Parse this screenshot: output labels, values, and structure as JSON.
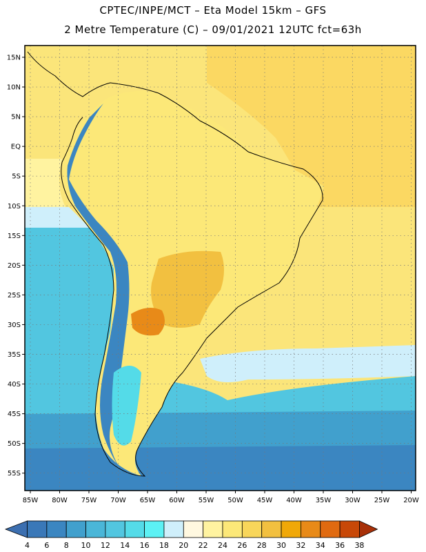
{
  "header": {
    "line1": "CPTEC/INPE/MCT –  Eta Model 15km – GFS",
    "line2": "2 Metre Temperature (C) – 09/01/2021 12UTC fct=63h"
  },
  "axes": {
    "lat_labels": [
      "15N",
      "10N",
      "5N",
      "EQ",
      "5S",
      "10S",
      "15S",
      "20S",
      "25S",
      "30S",
      "35S",
      "40S",
      "45S",
      "50S",
      "55S"
    ],
    "lon_labels": [
      "85W",
      "80W",
      "75W",
      "70W",
      "65W",
      "60W",
      "55W",
      "50W",
      "45W",
      "40W",
      "35W",
      "30W",
      "25W",
      "20W"
    ]
  },
  "colorbar": {
    "labels": [
      "4",
      "6",
      "8",
      "10",
      "12",
      "14",
      "16",
      "18",
      "20",
      "22",
      "24",
      "26",
      "28",
      "30",
      "32",
      "34",
      "36",
      "38"
    ],
    "colors": [
      "#3a78b8",
      "#3b86c1",
      "#41a0cd",
      "#4ab6d8",
      "#52c6e0",
      "#54dbe8",
      "#5cf1f4",
      "#cfeffb",
      "#fff8e0",
      "#fff3a0",
      "#fce878",
      "#f8d65a",
      "#f2c040",
      "#f0a808",
      "#e88a18",
      "#e06a10",
      "#c84808",
      "#b83a08"
    ],
    "under_color": "#3c6fb0",
    "over_color": "#a83008"
  },
  "map": {
    "background_color": "#fbe57a",
    "field_colors": {
      "north_atlantic": "#fbd862",
      "pacific_warm": "#fff3a0",
      "pacific_mid": "#cfeffb",
      "pacific_cool": "#52c6e0",
      "southern_ocean": "#41a0cd",
      "south_polar": "#3b86c1",
      "land_base": "#fce878",
      "land_hot": "#f2c040",
      "land_hottest": "#e88a18",
      "andes_cold": "#3b86c1",
      "andes_cool": "#54dbe8"
    }
  }
}
